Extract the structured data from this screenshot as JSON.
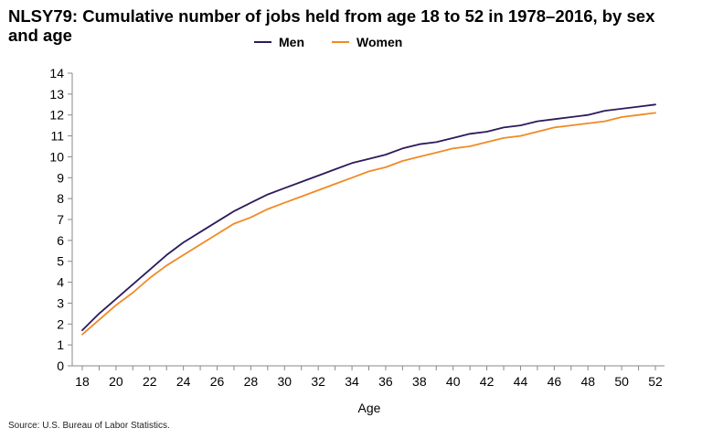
{
  "chart_data": {
    "type": "line",
    "title": "NLSY79: Cumulative number of jobs held from age 18 to 52 in 1978–2016, by sex and age",
    "xlabel": "Age",
    "ylabel": "",
    "xlim": [
      18,
      52
    ],
    "ylim": [
      0,
      14
    ],
    "x_ticks": [
      "18",
      "20",
      "22",
      "24",
      "26",
      "28",
      "30",
      "32",
      "34",
      "36",
      "38",
      "40",
      "42",
      "44",
      "46",
      "48",
      "50",
      "52"
    ],
    "y_ticks": [
      "0",
      "1",
      "2",
      "3",
      "4",
      "5",
      "6",
      "7",
      "8",
      "9",
      "10",
      "11",
      "12",
      "13",
      "14"
    ],
    "grid": false,
    "legend_position": "top",
    "x": [
      18,
      19,
      20,
      21,
      22,
      23,
      24,
      25,
      26,
      27,
      28,
      29,
      30,
      31,
      32,
      33,
      34,
      35,
      36,
      37,
      38,
      39,
      40,
      41,
      42,
      43,
      44,
      45,
      46,
      47,
      48,
      49,
      50,
      51,
      52
    ],
    "series": [
      {
        "name": "Men",
        "color": "#2d1a5a",
        "values": [
          1.7,
          2.5,
          3.2,
          3.9,
          4.6,
          5.3,
          5.9,
          6.4,
          6.9,
          7.4,
          7.8,
          8.2,
          8.5,
          8.8,
          9.1,
          9.4,
          9.7,
          9.9,
          10.1,
          10.4,
          10.6,
          10.7,
          10.9,
          11.1,
          11.2,
          11.4,
          11.5,
          11.7,
          11.8,
          11.9,
          12.0,
          12.2,
          12.3,
          12.4,
          12.5
        ]
      },
      {
        "name": "Women",
        "color": "#f08a24",
        "values": [
          1.5,
          2.2,
          2.9,
          3.5,
          4.2,
          4.8,
          5.3,
          5.8,
          6.3,
          6.8,
          7.1,
          7.5,
          7.8,
          8.1,
          8.4,
          8.7,
          9.0,
          9.3,
          9.5,
          9.8,
          10.0,
          10.2,
          10.4,
          10.5,
          10.7,
          10.9,
          11.0,
          11.2,
          11.4,
          11.5,
          11.6,
          11.7,
          11.9,
          12.0,
          12.1
        ]
      }
    ]
  },
  "source": "Source: U.S. Bureau of Labor Statistics."
}
